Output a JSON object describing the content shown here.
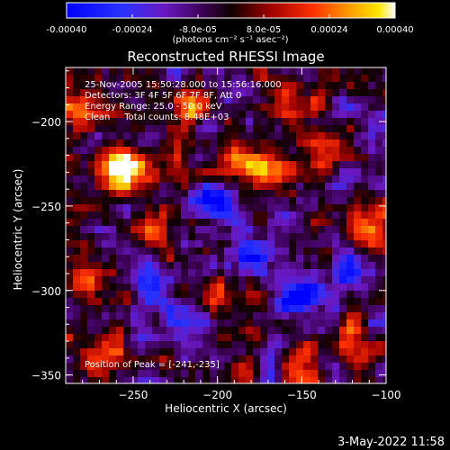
{
  "chart_data": {
    "type": "heatmap",
    "title": "Reconstructed RHESSI Image",
    "xlabel": "Heliocentric X (arcsec)",
    "ylabel": "Heliocentric Y (arcsec)",
    "xlim": [
      -290,
      -100
    ],
    "ylim": [
      -355,
      -168
    ],
    "x_ticks": [
      -250,
      -200,
      -150,
      -100
    ],
    "x_tick_labels": [
      "−250",
      "−200",
      "−150",
      "−100"
    ],
    "y_ticks": [
      -200,
      -250,
      -300,
      -350
    ],
    "y_tick_labels": [
      "−200",
      "−250",
      "−300",
      "−350"
    ],
    "colorbar": {
      "range": [
        -0.0004,
        0.0004
      ],
      "ticks": [
        -0.0004,
        -0.00024,
        -8e-05,
        8e-05,
        0.00024,
        0.0004
      ],
      "tick_labels": [
        "-0.00040",
        "-0.00024",
        "-8.0e-05",
        "8.0e-05",
        "0.00024",
        "0.00040"
      ],
      "units_label": "(photons cm⁻² s⁻¹ asec⁻²)"
    },
    "annotations": {
      "time_range": "25-Nov-2005 15:50:28.000 to 15:56:16.000",
      "detectors": "Detectors: 3F 4F 5F 6F 7F 8F, Att 0",
      "energy_range": "Energy Range: 25.0 - 50.0 keV",
      "algorithm": "Clean     Total counts: 8.48E+03",
      "peak": "Position of Peak = [-241,-235]"
    },
    "peak_position": [
      -241,
      -235
    ],
    "hotspots": [
      {
        "x": -252,
        "y": -232,
        "intensity": 1.0
      },
      {
        "x": -268,
        "y": -337,
        "intensity": 0.85
      },
      {
        "x": -260,
        "y": -225,
        "intensity": 0.8
      },
      {
        "x": -185,
        "y": -225,
        "intensity": 0.85
      },
      {
        "x": -168,
        "y": -232,
        "intensity": 0.8
      },
      {
        "x": -218,
        "y": -190,
        "intensity": 0.7
      },
      {
        "x": -280,
        "y": -195,
        "intensity": 0.65
      },
      {
        "x": -240,
        "y": -265,
        "intensity": 0.6
      },
      {
        "x": -200,
        "y": -300,
        "intensity": 0.55
      },
      {
        "x": -135,
        "y": -215,
        "intensity": 0.6
      },
      {
        "x": -120,
        "y": -330,
        "intensity": 0.6
      },
      {
        "x": -150,
        "y": -345,
        "intensity": 0.55
      },
      {
        "x": -110,
        "y": -260,
        "intensity": 0.55
      },
      {
        "x": -285,
        "y": -290,
        "intensity": 0.55
      },
      {
        "x": -150,
        "y": -185,
        "intensity": 0.5
      }
    ],
    "coldspots": [
      {
        "x": -200,
        "y": -250,
        "intensity": -0.7
      },
      {
        "x": -150,
        "y": -300,
        "intensity": -0.8
      },
      {
        "x": -240,
        "y": -300,
        "intensity": -0.55
      },
      {
        "x": -120,
        "y": -290,
        "intensity": -0.6
      },
      {
        "x": -220,
        "y": -320,
        "intensity": -0.6
      },
      {
        "x": -180,
        "y": -280,
        "intensity": -0.5
      }
    ]
  },
  "footer": {
    "timestamp": "3-May-2022 11:58"
  }
}
